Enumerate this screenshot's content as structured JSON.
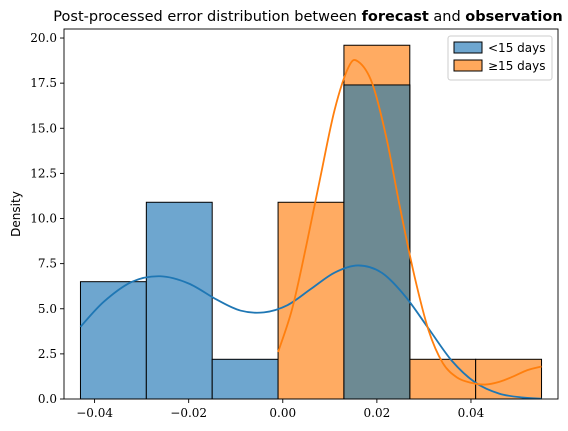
{
  "chart_data": {
    "type": "histogram",
    "title_prefix": "Post-processed error distribution between ",
    "title_bold_1": "forecast",
    "title_mid": " and ",
    "title_bold_2": "observation",
    "xlabel": "",
    "ylabel": "Density",
    "xlim": [
      -0.0465,
      0.0585
    ],
    "ylim": [
      0,
      20.5
    ],
    "x_ticks": [
      -0.04,
      -0.02,
      0.0,
      0.02,
      0.04
    ],
    "x_tick_labels": [
      "−0.04",
      "−0.02",
      "0.00",
      "0.02",
      "0.04"
    ],
    "y_ticks": [
      0,
      2.5,
      5,
      7.5,
      10,
      12.5,
      15,
      17.5,
      20
    ],
    "y_tick_labels": [
      "0.0",
      "2.5",
      "5.0",
      "7.5",
      "10.0",
      "12.5",
      "15.0",
      "17.5",
      "20.0"
    ],
    "bin_edges": [
      -0.043,
      -0.029,
      -0.015,
      -0.001,
      0.013,
      0.027,
      0.041,
      0.055
    ],
    "legend_position": "top-right",
    "series": [
      {
        "name": "<15 days",
        "color": "#1f77b4",
        "fill": "#6ea6cf",
        "densities": [
          6.5,
          10.9,
          2.2,
          0,
          17.4,
          0,
          0
        ],
        "kde": [
          [
            -0.043,
            4.0
          ],
          [
            -0.038,
            5.4
          ],
          [
            -0.032,
            6.5
          ],
          [
            -0.026,
            6.8
          ],
          [
            -0.02,
            6.4
          ],
          [
            -0.014,
            5.5
          ],
          [
            -0.009,
            4.9
          ],
          [
            -0.004,
            4.8
          ],
          [
            0.001,
            5.2
          ],
          [
            0.006,
            6.1
          ],
          [
            0.011,
            7.0
          ],
          [
            0.016,
            7.4
          ],
          [
            0.021,
            7.0
          ],
          [
            0.026,
            5.7
          ],
          [
            0.031,
            3.9
          ],
          [
            0.036,
            2.1
          ],
          [
            0.041,
            0.9
          ],
          [
            0.046,
            0.3
          ],
          [
            0.051,
            0.08
          ],
          [
            0.055,
            0.02
          ]
        ]
      },
      {
        "name": "≥15 days",
        "color": "#ff7f0e",
        "fill": "#ffa85c",
        "densities": [
          0,
          0,
          0,
          10.9,
          19.6,
          2.2,
          2.2
        ],
        "kde": [
          [
            -0.001,
            2.6
          ],
          [
            0.002,
            5.0
          ],
          [
            0.005,
            8.5
          ],
          [
            0.008,
            12.3
          ],
          [
            0.011,
            16.0
          ],
          [
            0.014,
            18.4
          ],
          [
            0.016,
            18.7
          ],
          [
            0.019,
            17.5
          ],
          [
            0.022,
            14.5
          ],
          [
            0.025,
            10.5
          ],
          [
            0.028,
            6.8
          ],
          [
            0.031,
            3.8
          ],
          [
            0.034,
            2.0
          ],
          [
            0.037,
            1.2
          ],
          [
            0.04,
            0.9
          ],
          [
            0.043,
            0.8
          ],
          [
            0.046,
            0.95
          ],
          [
            0.049,
            1.25
          ],
          [
            0.052,
            1.6
          ],
          [
            0.055,
            1.8
          ]
        ]
      }
    ]
  }
}
